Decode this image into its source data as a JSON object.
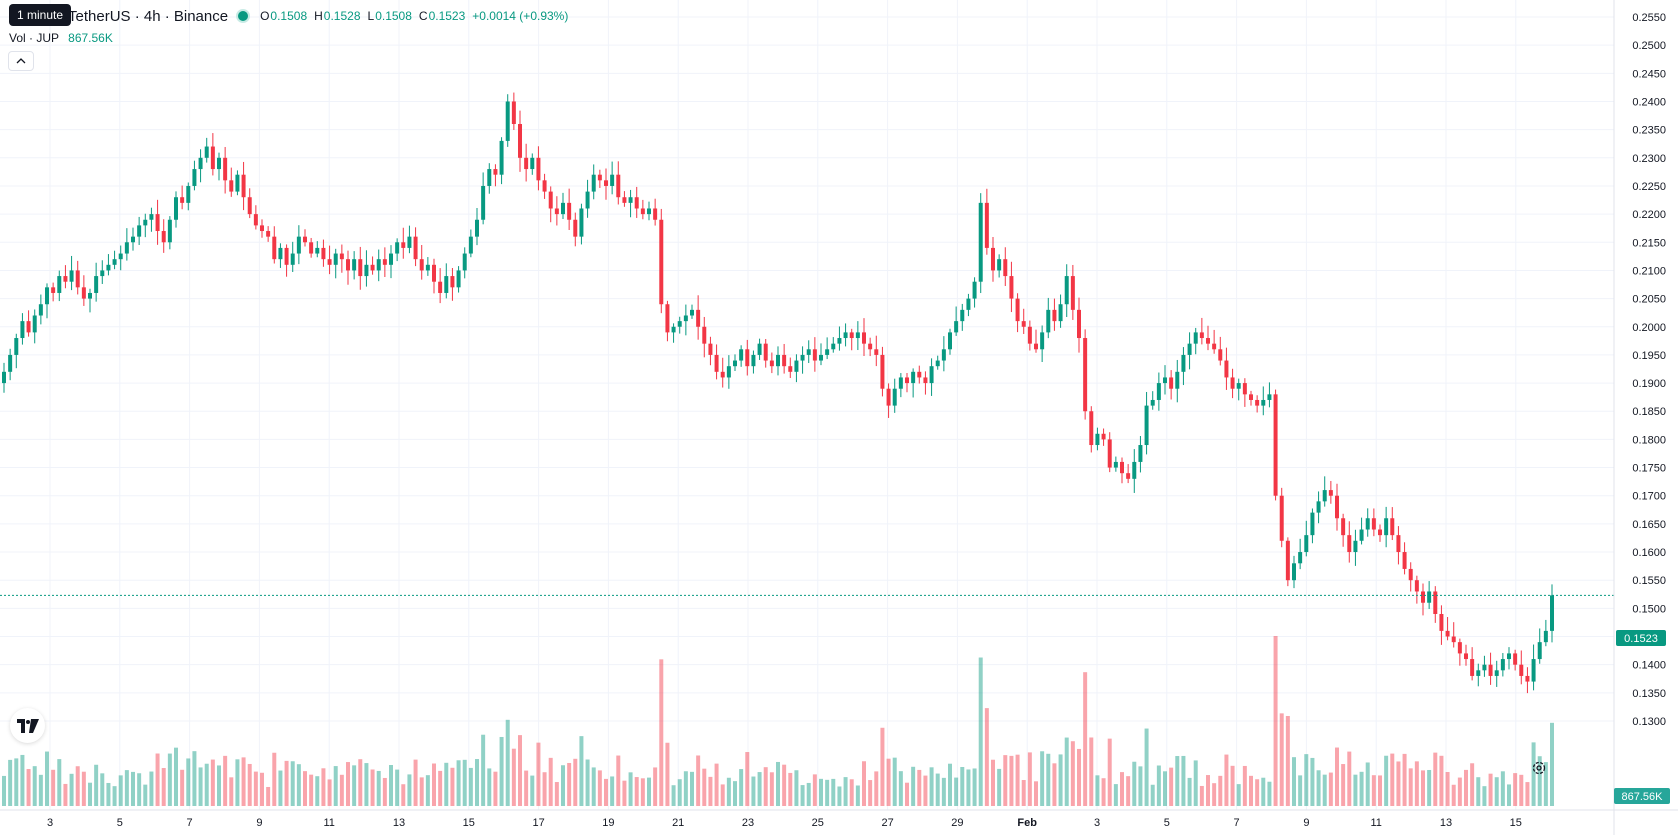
{
  "tooltip": "1 minute",
  "legend": {
    "symbol_title": "TetherUS · 4h · Binance",
    "o_label": "O",
    "o_value": "0.1508",
    "h_label": "H",
    "h_value": "0.1528",
    "l_label": "L",
    "l_value": "0.1508",
    "c_label": "C",
    "c_value": "0.1523",
    "change": "+0.0014 (+0.93%)",
    "vol_label": "Vol · JUP",
    "vol_value": "867.56K"
  },
  "price_axis": {
    "labels": [
      "0.2550",
      "0.2500",
      "0.2450",
      "0.2400",
      "0.2350",
      "0.2300",
      "0.2250",
      "0.2200",
      "0.2150",
      "0.2100",
      "0.2050",
      "0.2000",
      "0.1950",
      "0.1900",
      "0.1850",
      "0.1800",
      "0.1750",
      "0.1700",
      "0.1650",
      "0.1600",
      "0.1550",
      "0.1500",
      "0.1450",
      "0.1400",
      "0.1350",
      "0.1300"
    ],
    "last_price_label": "0.1523",
    "volume_badge": "867.56K"
  },
  "time_axis": {
    "labels": [
      "3",
      "5",
      "7",
      "9",
      "11",
      "13",
      "15",
      "17",
      "19",
      "21",
      "23",
      "25",
      "27",
      "29",
      "Feb",
      "3",
      "5",
      "7",
      "9",
      "11",
      "13",
      "15"
    ]
  },
  "colors": {
    "up": "#089981",
    "down": "#f23645",
    "grid": "#f0f3fa",
    "last_price": "#089981"
  },
  "icons": {
    "logo": "tradingview-logo-icon",
    "settings": "gear-icon",
    "collapse": "chevron-up-icon"
  },
  "chart_data": {
    "type": "candlestick",
    "interval": "4h",
    "y_range": [
      0.128,
      0.256
    ],
    "last_price": 0.1523,
    "candle_closes": [
      0.192,
      0.195,
      0.198,
      0.201,
      0.199,
      0.202,
      0.204,
      0.207,
      0.206,
      0.209,
      0.208,
      0.21,
      0.207,
      0.205,
      0.206,
      0.209,
      0.21,
      0.211,
      0.212,
      0.213,
      0.215,
      0.216,
      0.218,
      0.219,
      0.22,
      0.217,
      0.215,
      0.219,
      0.223,
      0.222,
      0.225,
      0.228,
      0.23,
      0.232,
      0.228,
      0.23,
      0.226,
      0.224,
      0.227,
      0.223,
      0.22,
      0.218,
      0.217,
      0.216,
      0.212,
      0.214,
      0.211,
      0.213,
      0.216,
      0.215,
      0.213,
      0.214,
      0.212,
      0.211,
      0.213,
      0.212,
      0.21,
      0.212,
      0.209,
      0.211,
      0.21,
      0.212,
      0.211,
      0.213,
      0.215,
      0.214,
      0.216,
      0.212,
      0.21,
      0.211,
      0.208,
      0.206,
      0.209,
      0.207,
      0.21,
      0.213,
      0.216,
      0.219,
      0.225,
      0.228,
      0.227,
      0.233,
      0.24,
      0.236,
      0.23,
      0.228,
      0.23,
      0.226,
      0.224,
      0.221,
      0.22,
      0.222,
      0.219,
      0.216,
      0.221,
      0.224,
      0.227,
      0.226,
      0.225,
      0.227,
      0.223,
      0.222,
      0.223,
      0.221,
      0.22,
      0.221,
      0.219,
      0.204,
      0.199,
      0.2,
      0.201,
      0.202,
      0.203,
      0.2,
      0.197,
      0.195,
      0.192,
      0.191,
      0.193,
      0.194,
      0.196,
      0.193,
      0.195,
      0.197,
      0.194,
      0.193,
      0.195,
      0.193,
      0.192,
      0.194,
      0.195,
      0.196,
      0.194,
      0.195,
      0.196,
      0.197,
      0.198,
      0.199,
      0.198,
      0.199,
      0.197,
      0.196,
      0.195,
      0.189,
      0.186,
      0.189,
      0.191,
      0.19,
      0.192,
      0.191,
      0.19,
      0.193,
      0.194,
      0.196,
      0.199,
      0.201,
      0.203,
      0.205,
      0.208,
      0.222,
      0.214,
      0.21,
      0.212,
      0.209,
      0.205,
      0.201,
      0.2,
      0.197,
      0.196,
      0.199,
      0.203,
      0.201,
      0.204,
      0.209,
      0.203,
      0.198,
      0.185,
      0.179,
      0.181,
      0.18,
      0.175,
      0.176,
      0.174,
      0.173,
      0.176,
      0.179,
      0.186,
      0.187,
      0.19,
      0.191,
      0.189,
      0.192,
      0.195,
      0.197,
      0.199,
      0.198,
      0.197,
      0.196,
      0.194,
      0.191,
      0.189,
      0.19,
      0.188,
      0.187,
      0.186,
      0.187,
      0.188,
      0.17,
      0.162,
      0.155,
      0.158,
      0.16,
      0.163,
      0.167,
      0.169,
      0.171,
      0.17,
      0.166,
      0.163,
      0.16,
      0.162,
      0.164,
      0.166,
      0.164,
      0.163,
      0.166,
      0.163,
      0.16,
      0.157,
      0.155,
      0.153,
      0.151,
      0.153,
      0.149,
      0.146,
      0.145,
      0.144,
      0.142,
      0.141,
      0.138,
      0.139,
      0.14,
      0.138,
      0.139,
      0.141,
      0.142,
      0.14,
      0.138,
      0.137,
      0.141,
      0.144,
      0.146,
      0.1523
    ]
  }
}
